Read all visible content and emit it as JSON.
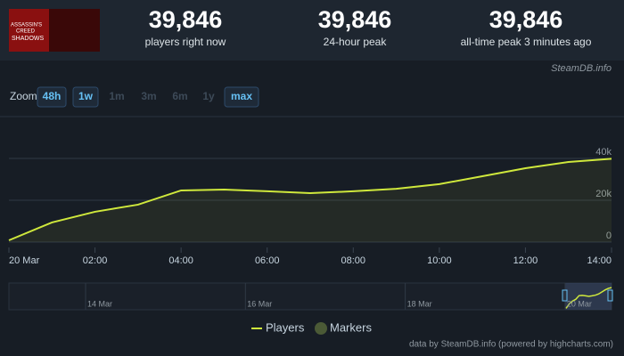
{
  "header": {
    "logo_lines": [
      "ASSASSIN'S",
      "CREED",
      "SHADOWS"
    ],
    "stats": [
      {
        "value": "39,846",
        "label": "players right now"
      },
      {
        "value": "39,846",
        "label": "24-hour peak"
      },
      {
        "value": "39,846",
        "label": "all-time peak 3 minutes ago"
      }
    ],
    "source": "SteamDB.info"
  },
  "zoom": {
    "label": "Zoom",
    "buttons": [
      {
        "text": "48h",
        "enabled": true
      },
      {
        "text": "1w",
        "enabled": true
      },
      {
        "text": "1m",
        "enabled": false
      },
      {
        "text": "3m",
        "enabled": false
      },
      {
        "text": "6m",
        "enabled": false
      },
      {
        "text": "1y",
        "enabled": false
      },
      {
        "text": "max",
        "enabled": true
      }
    ]
  },
  "chart_data": {
    "type": "line",
    "x": [
      0,
      1,
      2,
      3,
      4,
      5,
      6,
      7,
      8,
      9,
      10,
      11,
      12,
      13,
      14
    ],
    "series": [
      {
        "name": "Players",
        "color": "#cfe83c",
        "values": [
          850,
          9400,
          14500,
          17900,
          24700,
          25100,
          24300,
          23400,
          24300,
          25500,
          27700,
          31500,
          35300,
          38300,
          39846
        ]
      }
    ],
    "markers": {
      "name": "Markers",
      "color": "#4b5a36"
    },
    "xlim": [
      0,
      14
    ],
    "xticks": [
      {
        "value": 0,
        "label": "20 Mar"
      },
      {
        "value": 2,
        "label": "02:00"
      },
      {
        "value": 4,
        "label": "04:00"
      },
      {
        "value": 6,
        "label": "06:00"
      },
      {
        "value": 8,
        "label": "08:00"
      },
      {
        "value": 10,
        "label": "10:00"
      },
      {
        "value": 12,
        "label": "12:00"
      },
      {
        "value": 14,
        "label": "14:00"
      }
    ],
    "ylim": [
      0,
      60000
    ],
    "yticks": [
      0,
      {
        "value": 20000,
        "label": "20k"
      },
      {
        "value": 40000,
        "label": "40k"
      }
    ],
    "grid": true,
    "navigator_labels": [
      "14 Mar",
      "16 Mar",
      "18 Mar",
      "20 Mar"
    ],
    "credit": "data by SteamDB.info (powered by highcharts.com)"
  }
}
